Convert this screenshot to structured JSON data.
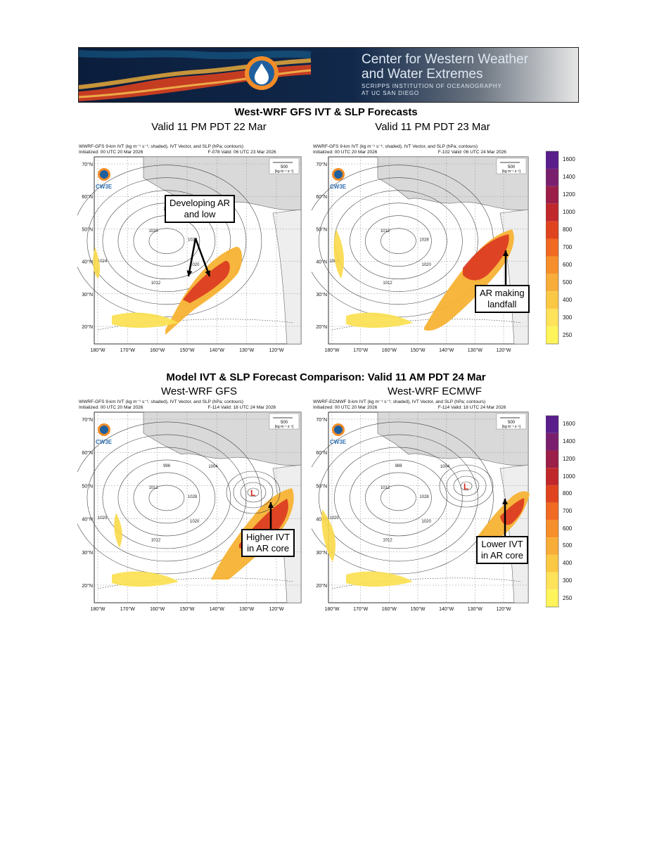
{
  "banner": {
    "title": "Center for Western Weather\nand Water Extremes",
    "subtitle": "SCRIPPS INSTITUTION  OF OCEANOGRAPHY\nAT UC SAN DIEGO"
  },
  "section1": {
    "title": "West-WRF GFS IVT & SLP Forecasts",
    "left_col": "Valid 11 PM PDT 22 Mar",
    "right_col": "Valid 11 PM PDT 23 Mar"
  },
  "section2": {
    "title": "Model IVT & SLP Forecast Comparison: Valid 11 AM PDT 24 Mar",
    "left_col": "West-WRF GFS",
    "right_col": "West-WRF ECMWF"
  },
  "panels": [
    {
      "header1": "WWRF-GFS 9-km IVT (kg m⁻¹ s⁻¹; shaded), IVT Vector, and SLP (hPa; contours)",
      "header2": "Initialized: 00 UTC 20 Mar 2026",
      "header3": "F-078  Valid: 06 UTC 23 Mar 2026",
      "callout": "Developing AR\nand low",
      "contour_labels": [
        "1028",
        "1020",
        "1012",
        "1024",
        "1020",
        "1012"
      ]
    },
    {
      "header1": "WWRF-GFS 9-km IVT (kg m⁻¹ s⁻¹; shaded), IVT Vector, and SLP (hPa; contours)",
      "header2": "Initialized: 00 UTC 20 Mar 2026",
      "header3": "F-102  Valid: 06 UTC 24 Mar 2026",
      "callout": "AR making\nlandfall",
      "contour_labels": [
        "1028",
        "1020",
        "1012",
        "1004",
        "1012"
      ]
    },
    {
      "header1": "WWRF-GFS 9-km IVT (kg m⁻¹ s⁻¹; shaded), IVT Vector, and SLP (hPa; contours)",
      "header2": "Initialized: 00 UTC 20 Mar 2026",
      "header3": "F-114  Valid: 18 UTC 24 Mar 2026",
      "callout": "Higher IVT\nin AR core",
      "contour_labels": [
        "1028",
        "1020",
        "1012",
        "1020",
        "1012",
        "996",
        "1004"
      ]
    },
    {
      "header1": "WWRF-ECMWF 9-km IVT (kg m⁻¹ s⁻¹; shaded), IVT Vector, and SLP (hPa; contours)",
      "header2": "Initialized: 00 UTC 20 Mar 2026",
      "header3": "F-114  Valid: 18 UTC 24 Mar 2026",
      "callout": "Lower IVT\nin AR core",
      "contour_labels": [
        "1028",
        "1020",
        "1012",
        "1020",
        "1012",
        "988",
        "1004"
      ]
    }
  ],
  "map_axes": {
    "lat_labels": [
      "70°N",
      "60°N",
      "50°N",
      "40°N",
      "30°N",
      "20°N"
    ],
    "lon_labels": [
      "180°W",
      "170°W",
      "160°W",
      "150°W",
      "140°W",
      "130°W",
      "120°W"
    ]
  },
  "vector_key": {
    "value": "500",
    "units": "[kg m⁻¹ s⁻¹]"
  },
  "logo_text": "CW3E",
  "low_marker": "L",
  "colorbar": {
    "levels": [
      "1600",
      "1400",
      "1200",
      "1000",
      "800",
      "700",
      "600",
      "500",
      "400",
      "300",
      "250"
    ],
    "colors": [
      "#5a1e8c",
      "#7a1f6e",
      "#9b1f48",
      "#c0282b",
      "#e0441f",
      "#f06a22",
      "#f68f2b",
      "#f7ad38",
      "#fbc844",
      "#fde25a",
      "#fff45c"
    ]
  }
}
